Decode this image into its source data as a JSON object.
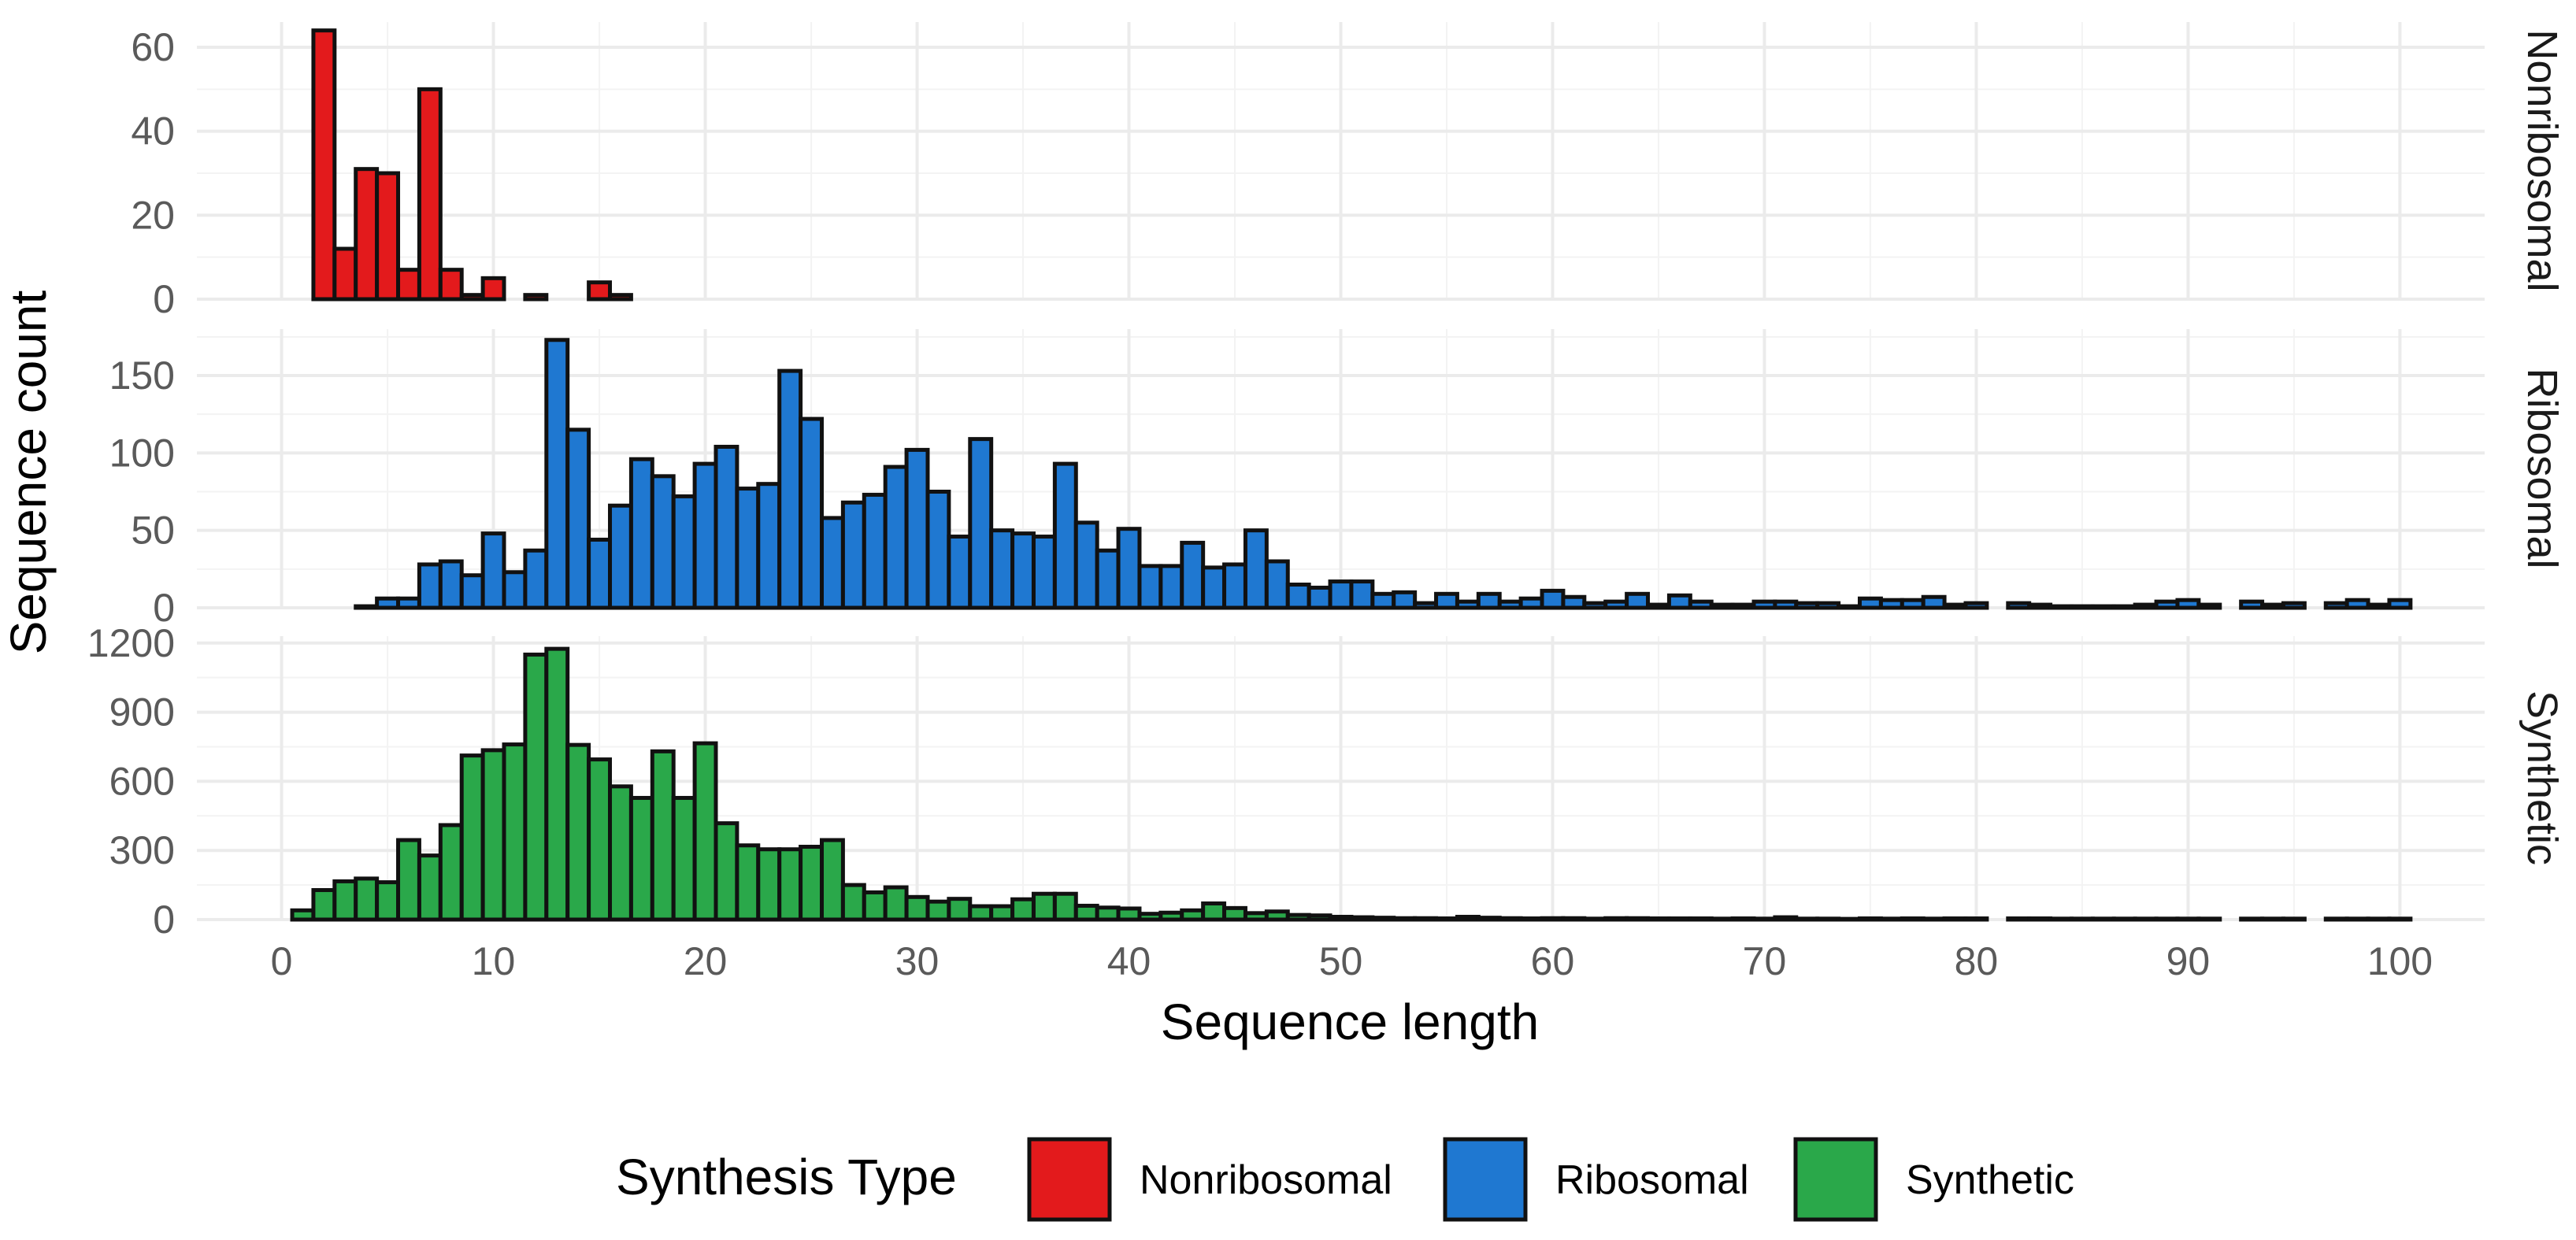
{
  "chart_data": {
    "type": "bar",
    "subtype": "faceted-histogram",
    "xlabel": "Sequence length",
    "ylabel": "Sequence count",
    "xlim": [
      -4,
      104
    ],
    "x_ticks": [
      0,
      10,
      20,
      30,
      40,
      50,
      60,
      70,
      80,
      90,
      100
    ],
    "bin_width": 1,
    "grid": true,
    "legend": {
      "title": "Synthesis Type",
      "position": "bottom",
      "entries": [
        "Nonribosomal",
        "Ribosomal",
        "Synthetic"
      ]
    },
    "colors": {
      "Nonribosomal": "#e31a1c",
      "Ribosomal": "#1f78d1",
      "Synthetic": "#2aa84a"
    },
    "series": [
      {
        "name": "Nonribosomal",
        "ylim": [
          0,
          66
        ],
        "y_ticks": [
          0,
          20,
          40,
          60
        ],
        "values": [
          0,
          64,
          12,
          31,
          30,
          7,
          50,
          7,
          1,
          5,
          0,
          1,
          0,
          0,
          4,
          1,
          0,
          0,
          0,
          0,
          0,
          0,
          0,
          0,
          0,
          0,
          0,
          0,
          0,
          0,
          0,
          0,
          0,
          0,
          0,
          0,
          0,
          0,
          0,
          0,
          0,
          0,
          0,
          0,
          0,
          0,
          0,
          0,
          0,
          0,
          0,
          0,
          0,
          0,
          0,
          0,
          0,
          0,
          0,
          0,
          0,
          0,
          0,
          0,
          0,
          0,
          0,
          0,
          0,
          0,
          0,
          0,
          0,
          0,
          0,
          0,
          0,
          0,
          0,
          0,
          null,
          0,
          0,
          0,
          0,
          0,
          0,
          0,
          0,
          0,
          0,
          null,
          0,
          0,
          0,
          null,
          0,
          0,
          0,
          0
        ]
      },
      {
        "name": "Ribosomal",
        "ylim": [
          0,
          180
        ],
        "y_ticks": [
          0,
          50,
          100,
          150
        ],
        "values": [
          0,
          0,
          0,
          1,
          6,
          6,
          28,
          30,
          21,
          48,
          23,
          37,
          173,
          115,
          44,
          66,
          96,
          85,
          72,
          93,
          104,
          77,
          80,
          153,
          122,
          58,
          68,
          73,
          91,
          102,
          75,
          46,
          109,
          50,
          48,
          46,
          93,
          55,
          37,
          51,
          27,
          27,
          42,
          26,
          28,
          50,
          30,
          15,
          13,
          17,
          17,
          9,
          10,
          3,
          9,
          4,
          9,
          4,
          6,
          11,
          7,
          3,
          4,
          9,
          2,
          8,
          4,
          2,
          2,
          4,
          4,
          3,
          3,
          1,
          6,
          5,
          5,
          7,
          2,
          3,
          null,
          3,
          2,
          1,
          1,
          1,
          1,
          2,
          4,
          5,
          2,
          null,
          4,
          2,
          3,
          null,
          3,
          5,
          2,
          5
        ]
      },
      {
        "name": "Synthetic",
        "ylim": [
          0,
          1230
        ],
        "y_ticks": [
          0,
          300,
          600,
          900,
          1200
        ],
        "values": [
          40,
          128,
          166,
          178,
          162,
          345,
          278,
          410,
          712,
          735,
          760,
          1150,
          1175,
          758,
          695,
          578,
          528,
          730,
          528,
          765,
          418,
          322,
          305,
          305,
          316,
          345,
          150,
          118,
          140,
          98,
          78,
          90,
          58,
          58,
          88,
          112,
          112,
          60,
          52,
          48,
          25,
          30,
          40,
          70,
          50,
          28,
          35,
          20,
          18,
          12,
          10,
          8,
          6,
          6,
          5,
          12,
          8,
          6,
          5,
          6,
          6,
          4,
          6,
          6,
          5,
          5,
          5,
          4,
          5,
          4,
          10,
          4,
          4,
          3,
          5,
          4,
          5,
          4,
          5,
          5,
          null,
          5,
          5,
          4,
          4,
          4,
          4,
          4,
          4,
          4,
          4,
          null,
          4,
          4,
          4,
          null,
          4,
          4,
          4,
          4
        ]
      }
    ]
  }
}
